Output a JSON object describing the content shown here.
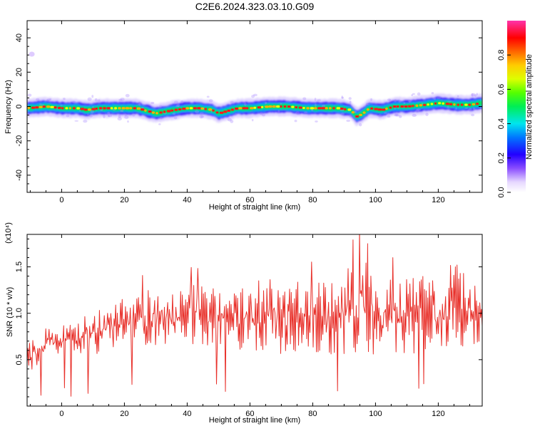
{
  "title": "C2E6.2024.323.03.10.G09",
  "chart_data": [
    {
      "type": "heatmap",
      "name": "spectrogram",
      "xlabel": "Height of straight line (km)",
      "ylabel": "Frequency (Hz)",
      "xlim": [
        -11,
        134
      ],
      "ylim": [
        -50,
        50
      ],
      "xticks": [
        0,
        20,
        40,
        60,
        80,
        100,
        120
      ],
      "yticks": [
        -40,
        -20,
        0,
        20,
        40
      ],
      "colorbar": {
        "label": "Normalized spectral amplitude",
        "range": [
          0.0,
          1.0
        ],
        "ticks": [
          0.0,
          0.2,
          0.4,
          0.6,
          0.8
        ]
      },
      "center_frequency": {
        "x": [
          -11,
          -5,
          0,
          5,
          8,
          12,
          18,
          24,
          28,
          30,
          33,
          36,
          40,
          44,
          48,
          50,
          52,
          56,
          60,
          66,
          72,
          78,
          84,
          88,
          92,
          94,
          96,
          98,
          102,
          106,
          110,
          116,
          120,
          126,
          130,
          134
        ],
        "y": [
          -1,
          0,
          -1,
          -1,
          -2,
          -1,
          -1,
          -1,
          -3,
          -4,
          -3,
          -2,
          -1,
          -1,
          -2,
          -4,
          -3,
          -1,
          -1,
          0,
          0,
          -1,
          -1,
          -1,
          -2,
          -6,
          -4,
          -1,
          -2,
          0,
          0,
          1,
          2,
          1,
          1,
          2
        ]
      },
      "grid": false
    },
    {
      "type": "line",
      "name": "snr",
      "xlabel": "Height of straight line (km)",
      "ylabel": "SNR (10 * v/v)",
      "multiplier": "(x10⁴)",
      "xlim": [
        -11,
        134
      ],
      "ylim": [
        0.0,
        1.85
      ],
      "xticks": [
        0,
        20,
        40,
        60,
        80,
        100,
        120
      ],
      "yticks": [
        0.5,
        1.0,
        1.5
      ],
      "ytick_labels": [
        "0.5",
        "1.0",
        "1.5"
      ],
      "color": "#e8302a",
      "envelope": {
        "x": [
          -11,
          -5,
          0,
          10,
          20,
          30,
          40,
          50,
          60,
          70,
          80,
          90,
          95,
          100,
          110,
          120,
          125,
          134
        ],
        "low": [
          0.3,
          0.45,
          0.5,
          0.5,
          0.55,
          0.55,
          0.6,
          0.55,
          0.5,
          0.45,
          0.45,
          0.45,
          0.4,
          0.45,
          0.45,
          0.5,
          0.45,
          0.6
        ],
        "high": [
          0.7,
          0.9,
          0.95,
          1.05,
          1.25,
          1.35,
          1.4,
          1.35,
          1.45,
          1.5,
          1.45,
          1.55,
          1.8,
          1.5,
          1.5,
          1.5,
          1.7,
          1.3
        ]
      },
      "grid": false
    }
  ]
}
